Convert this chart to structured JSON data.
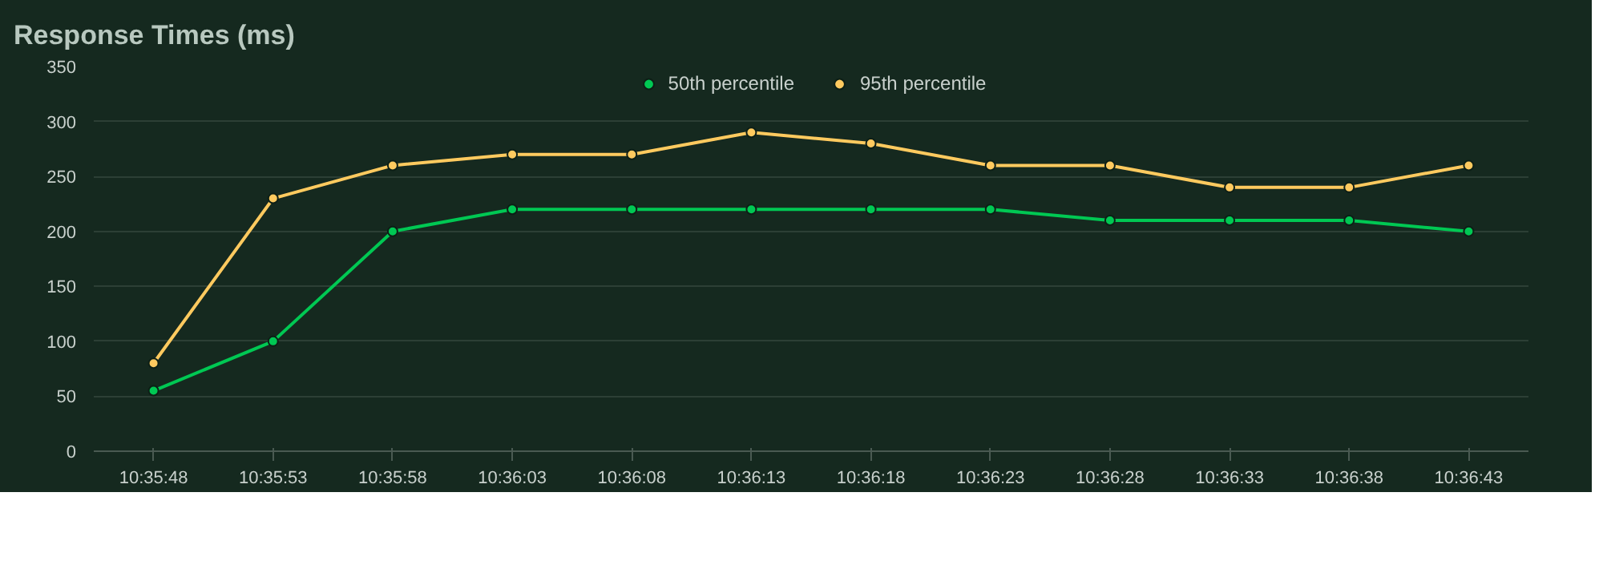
{
  "chart_data": {
    "type": "line",
    "title": "Response Times (ms)",
    "categories": [
      "10:35:48",
      "10:35:53",
      "10:35:58",
      "10:36:03",
      "10:36:08",
      "10:36:13",
      "10:36:18",
      "10:36:23",
      "10:36:28",
      "10:36:33",
      "10:36:38",
      "10:36:43"
    ],
    "series": [
      {
        "name": "50th percentile",
        "color": "#00c853",
        "values": [
          55,
          100,
          200,
          220,
          220,
          220,
          220,
          220,
          210,
          210,
          210,
          200
        ]
      },
      {
        "name": "95th percentile",
        "color": "#ffca5f",
        "values": [
          80,
          230,
          260,
          270,
          270,
          290,
          280,
          260,
          260,
          240,
          240,
          260
        ]
      }
    ],
    "ylim": [
      0,
      350
    ],
    "yticks": [
      0,
      50,
      100,
      150,
      200,
      250,
      300,
      350
    ],
    "grid": "y",
    "legend": "top",
    "marker": "circle",
    "line_style": "solid"
  }
}
